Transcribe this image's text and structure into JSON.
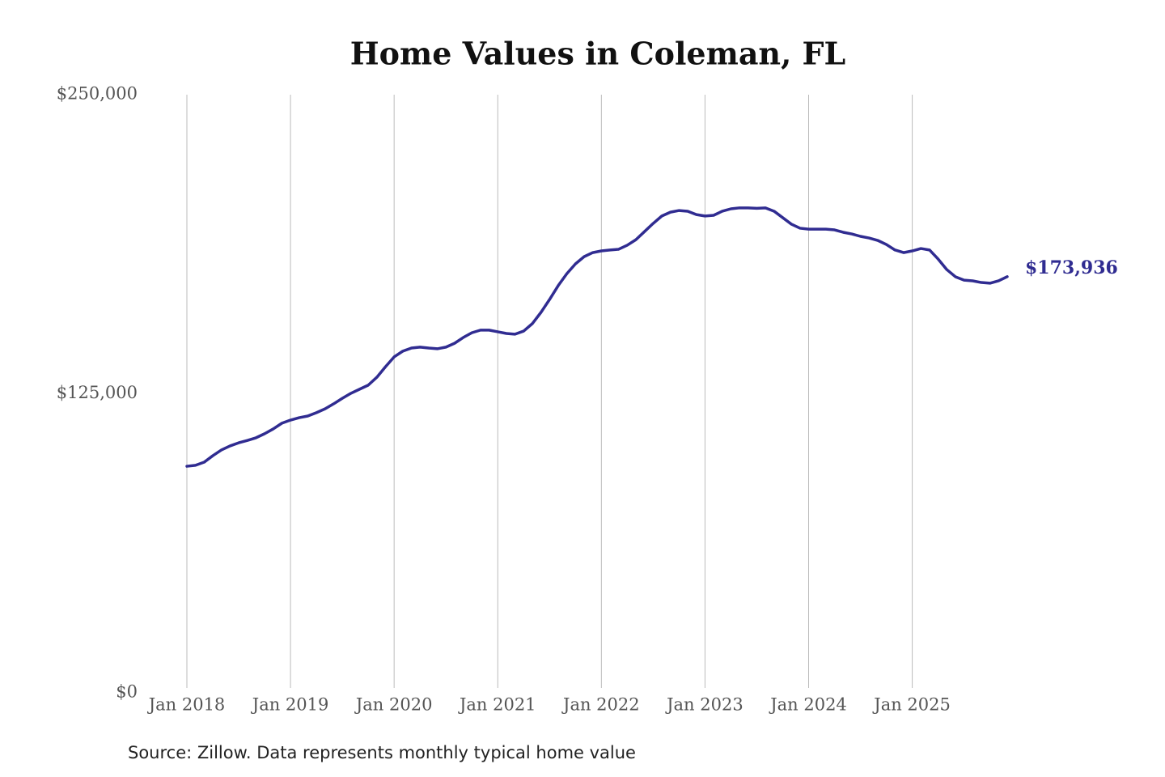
{
  "chart_data": {
    "type": "line",
    "title": "Home Values in Coleman, FL",
    "note": "Source: Zillow. Data represents monthly typical home value",
    "x": [
      "2018-01",
      "2018-02",
      "2018-03",
      "2018-04",
      "2018-05",
      "2018-06",
      "2018-07",
      "2018-08",
      "2018-09",
      "2018-10",
      "2018-11",
      "2018-12",
      "2019-01",
      "2019-02",
      "2019-03",
      "2019-04",
      "2019-05",
      "2019-06",
      "2019-07",
      "2019-08",
      "2019-09",
      "2019-10",
      "2019-11",
      "2019-12",
      "2020-01",
      "2020-02",
      "2020-03",
      "2020-04",
      "2020-05",
      "2020-06",
      "2020-07",
      "2020-08",
      "2020-09",
      "2020-10",
      "2020-11",
      "2020-12",
      "2021-01",
      "2021-02",
      "2021-03",
      "2021-04",
      "2021-05",
      "2021-06",
      "2021-07",
      "2021-08",
      "2021-09",
      "2021-10",
      "2021-11",
      "2021-12",
      "2022-01",
      "2022-02",
      "2022-03",
      "2022-04",
      "2022-05",
      "2022-06",
      "2022-07",
      "2022-08",
      "2022-09",
      "2022-10",
      "2022-11",
      "2022-12",
      "2023-01",
      "2023-02",
      "2023-03",
      "2023-04",
      "2023-05",
      "2023-06",
      "2023-07",
      "2023-08",
      "2023-09",
      "2023-10",
      "2023-11",
      "2023-12",
      "2024-01",
      "2024-02",
      "2024-03",
      "2024-04",
      "2024-05",
      "2024-06",
      "2024-07",
      "2024-08",
      "2024-09",
      "2024-10",
      "2024-11",
      "2024-12",
      "2025-01",
      "2025-02",
      "2025-03",
      "2025-04",
      "2025-05",
      "2025-06",
      "2025-07",
      "2025-08",
      "2025-09",
      "2025-10",
      "2025-11",
      "2025-12"
    ],
    "series": [
      {
        "name": "Coleman, FL",
        "color": "#302c91",
        "values": [
          94700,
          95100,
          96400,
          99100,
          101500,
          103200,
          104500,
          105500,
          106600,
          108300,
          110300,
          112700,
          114000,
          115000,
          115700,
          117100,
          118700,
          120800,
          123100,
          125200,
          126900,
          128600,
          131900,
          136300,
          140400,
          142800,
          144100,
          144500,
          144100,
          143800,
          144500,
          146100,
          148500,
          150500,
          151600,
          151600,
          150900,
          150200,
          149900,
          151200,
          154300,
          159000,
          164400,
          170200,
          175200,
          179300,
          182300,
          184000,
          184700,
          185100,
          185400,
          187100,
          189400,
          192800,
          196200,
          199300,
          200900,
          201600,
          201300,
          199900,
          199300,
          199600,
          201300,
          202300,
          202700,
          202700,
          202500,
          202700,
          201300,
          198600,
          195900,
          194200,
          193800,
          193800,
          193800,
          193500,
          192500,
          191800,
          190800,
          190100,
          189100,
          187400,
          185100,
          184000,
          184700,
          185700,
          185100,
          181300,
          176900,
          173900,
          172500,
          172200,
          171500,
          171200,
          172200,
          173936
        ],
        "end_label": "$173,936"
      }
    ],
    "xlim": [
      "2018-01",
      "2025-12"
    ],
    "xticks": [
      {
        "value": "2018-01",
        "label": "Jan 2018"
      },
      {
        "value": "2019-01",
        "label": "Jan 2019"
      },
      {
        "value": "2020-01",
        "label": "Jan 2020"
      },
      {
        "value": "2021-01",
        "label": "Jan 2021"
      },
      {
        "value": "2022-01",
        "label": "Jan 2022"
      },
      {
        "value": "2023-01",
        "label": "Jan 2023"
      },
      {
        "value": "2024-01",
        "label": "Jan 2024"
      },
      {
        "value": "2025-01",
        "label": "Jan 2025"
      }
    ],
    "ylim": [
      0,
      250000
    ],
    "yticks": [
      {
        "value": 0,
        "label": "$0"
      },
      {
        "value": 125000,
        "label": "$125,000"
      },
      {
        "value": 250000,
        "label": "$250,000"
      }
    ],
    "grid": "x"
  }
}
